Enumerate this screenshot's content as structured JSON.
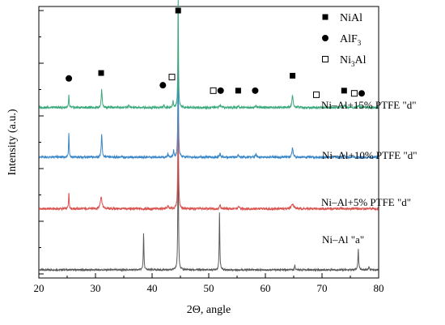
{
  "chart_data": {
    "type": "line",
    "title": "",
    "xlabel": "2Θ, angle",
    "ylabel": "Intensity (a.u.)",
    "xlim": [
      20,
      80
    ],
    "xticks": [
      20,
      30,
      40,
      50,
      60,
      70,
      80
    ],
    "grid": false,
    "legend_position": "top-right",
    "legend": [
      {
        "marker": "filled-square",
        "label": "NiAl",
        "sub": ""
      },
      {
        "marker": "filled-circle",
        "label": "AlF",
        "sub": "3"
      },
      {
        "marker": "open-square",
        "label": "Ni",
        "sub": "3",
        "suffix": "Al"
      }
    ],
    "series": [
      {
        "name": "Ni–Al \"a\"",
        "color": "#5a5a5a",
        "baseline": 0.03,
        "noise": 0.003,
        "peaks": [
          [
            38.5,
            0.135,
            0.13
          ],
          [
            44.6,
            0.55,
            0.12
          ],
          [
            51.9,
            0.215,
            0.13
          ],
          [
            65.2,
            0.018,
            0.15
          ],
          [
            76.4,
            0.075,
            0.16
          ],
          [
            78.3,
            0.012,
            0.15
          ]
        ]
      },
      {
        "name": "Ni–Al+5% PTFE \"d\"",
        "color": "#d9534f",
        "baseline": 0.255,
        "noise": 0.004,
        "peaks": [
          [
            25.3,
            0.06,
            0.14
          ],
          [
            31.0,
            0.045,
            0.35
          ],
          [
            42.8,
            0.012,
            0.2
          ],
          [
            44.6,
            0.47,
            0.13
          ],
          [
            52.0,
            0.012,
            0.25
          ],
          [
            55.3,
            0.008,
            0.25
          ],
          [
            64.8,
            0.018,
            0.5
          ]
        ]
      },
      {
        "name": "Ni–Al+10% PTFE \"d\"",
        "color": "#3a87c8",
        "baseline": 0.445,
        "noise": 0.004,
        "peaks": [
          [
            25.3,
            0.095,
            0.12
          ],
          [
            31.1,
            0.085,
            0.18
          ],
          [
            42.8,
            0.015,
            0.15
          ],
          [
            43.8,
            0.025,
            0.15
          ],
          [
            44.6,
            0.43,
            0.12
          ],
          [
            52.0,
            0.015,
            0.2
          ],
          [
            55.2,
            0.01,
            0.2
          ],
          [
            58.3,
            0.01,
            0.2
          ],
          [
            64.8,
            0.035,
            0.25
          ],
          [
            73.9,
            0.008,
            0.25
          ]
        ]
      },
      {
        "name": "Ni–Al+15% PTFE \"d\"",
        "color": "#3daa7d",
        "baseline": 0.628,
        "noise": 0.004,
        "peaks": [
          [
            25.3,
            0.045,
            0.12
          ],
          [
            31.1,
            0.065,
            0.2
          ],
          [
            35.9,
            0.008,
            0.2
          ],
          [
            42.1,
            0.008,
            0.2
          ],
          [
            43.7,
            0.025,
            0.15
          ],
          [
            44.6,
            0.43,
            0.12
          ],
          [
            52.0,
            0.01,
            0.2
          ],
          [
            55.2,
            0.008,
            0.2
          ],
          [
            58.3,
            0.008,
            0.2
          ],
          [
            64.8,
            0.045,
            0.25
          ],
          [
            74.0,
            0.01,
            0.25
          ],
          [
            76.5,
            0.008,
            0.25
          ]
        ]
      }
    ],
    "phase_markers": [
      {
        "marker": "filled-square",
        "x": 44.6,
        "y": 0.985
      },
      {
        "marker": "filled-circle",
        "x": 25.3,
        "y": 0.735
      },
      {
        "marker": "filled-square",
        "x": 31.0,
        "y": 0.755
      },
      {
        "marker": "filled-circle",
        "x": 41.9,
        "y": 0.71
      },
      {
        "marker": "open-square",
        "x": 43.5,
        "y": 0.74
      },
      {
        "marker": "open-square",
        "x": 50.8,
        "y": 0.69
      },
      {
        "marker": "filled-circle",
        "x": 52.1,
        "y": 0.69
      },
      {
        "marker": "filled-square",
        "x": 55.2,
        "y": 0.69
      },
      {
        "marker": "filled-circle",
        "x": 58.2,
        "y": 0.69
      },
      {
        "marker": "filled-square",
        "x": 64.8,
        "y": 0.745
      },
      {
        "marker": "open-square",
        "x": 69.0,
        "y": 0.675
      },
      {
        "marker": "filled-square",
        "x": 73.9,
        "y": 0.69
      },
      {
        "marker": "open-square",
        "x": 75.7,
        "y": 0.68
      },
      {
        "marker": "filled-circle",
        "x": 77.0,
        "y": 0.68
      }
    ]
  }
}
